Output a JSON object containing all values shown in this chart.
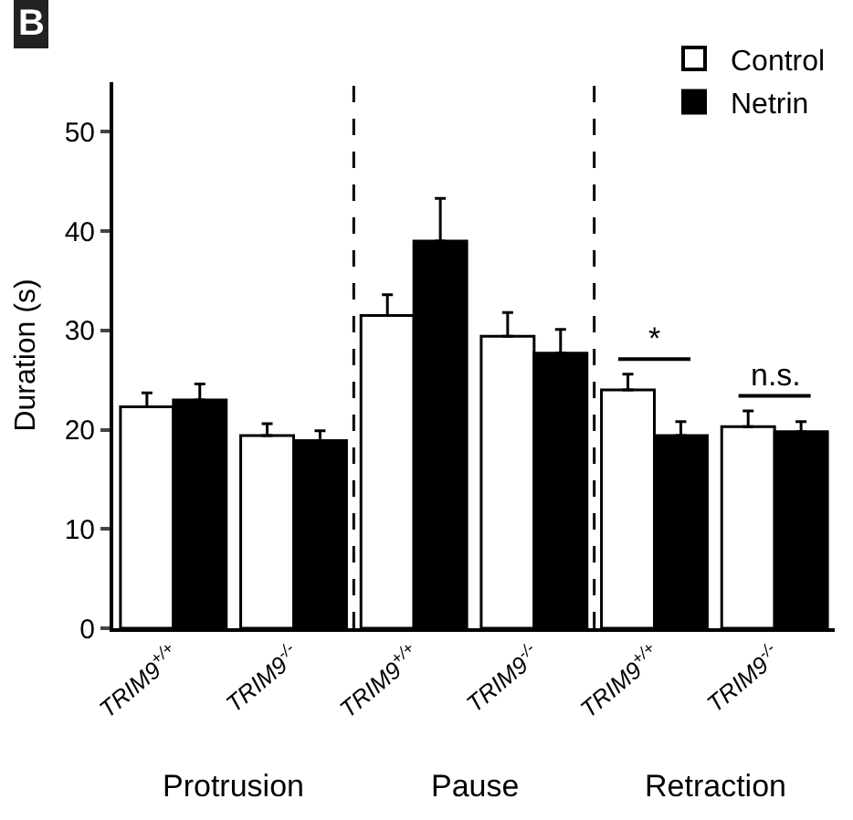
{
  "chart_data": {
    "type": "bar",
    "ylabel": "Duration (s)",
    "categories": [
      "TRIM9$^{+/+}$",
      "TRIM9$^{-/-}$",
      "TRIM9$^{+/+}$",
      "TRIM9$^{-/-}$",
      "TRIM9$^{+/+}$",
      "TRIM9$^{-/-}$"
    ],
    "series": [
      {
        "name": "Control",
        "color": "#ffffff",
        "values": [
          22.3,
          19.4,
          31.5,
          29.4,
          24.0,
          20.3
        ],
        "errors": [
          [
            22.3,
            23.7
          ],
          [
            19.4,
            20.6
          ],
          [
            31.5,
            33.6
          ],
          [
            29.4,
            31.8
          ],
          [
            24.0,
            25.6
          ],
          [
            20.3,
            21.9
          ]
        ]
      },
      {
        "name": "Netrin",
        "color": "#000000",
        "values": [
          23.0,
          18.9,
          39.0,
          27.7,
          19.4,
          19.8
        ],
        "errors": [
          [
            23.0,
            24.6
          ],
          [
            18.9,
            19.9
          ],
          [
            39.0,
            43.3
          ],
          [
            27.7,
            30.1
          ],
          [
            19.4,
            20.8
          ],
          [
            19.8,
            20.8
          ]
        ]
      }
    ],
    "ylim": [
      0,
      55
    ],
    "yticks": [
      0,
      10,
      20,
      30,
      40,
      50
    ],
    "grid": false,
    "legend": "top right",
    "annotations": [
      "B",
      "Protrusion",
      "Pause",
      "Retraction",
      "*",
      "n.s."
    ]
  }
}
